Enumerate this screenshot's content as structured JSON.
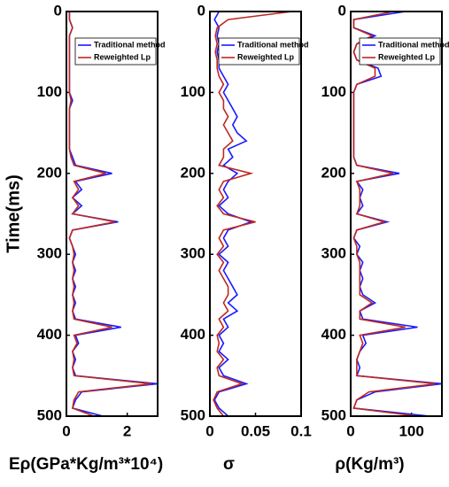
{
  "chart_data": [
    {
      "type": "line",
      "ylabel": "Time(ms)",
      "xlabel": "Eρ(GPa*Kg/m³*10⁴)",
      "y_reversed": true,
      "y": [
        0,
        10,
        20,
        30,
        40,
        50,
        60,
        70,
        80,
        90,
        100,
        110,
        120,
        130,
        140,
        150,
        160,
        170,
        180,
        190,
        200,
        210,
        220,
        230,
        240,
        250,
        260,
        270,
        280,
        290,
        300,
        310,
        320,
        330,
        340,
        350,
        360,
        370,
        380,
        390,
        400,
        410,
        420,
        430,
        440,
        450,
        460,
        470,
        480,
        490,
        500
      ],
      "ylim": [
        0,
        500
      ],
      "yticks": [
        0,
        100,
        200,
        300,
        400,
        500
      ],
      "xlim": [
        0,
        3
      ],
      "xticks": [
        0,
        2
      ],
      "series": [
        {
          "name": "Traditional method",
          "color": "#1a1aff",
          "values": [
            0.1,
            0.1,
            0.2,
            0.1,
            0.1,
            0.1,
            0.1,
            0.1,
            0.1,
            0.1,
            0.1,
            0.2,
            0.1,
            0.1,
            0.1,
            0.1,
            0.1,
            0.1,
            0.2,
            0.3,
            1.5,
            0.3,
            0.5,
            0.2,
            0.5,
            0.2,
            1.7,
            0.2,
            0.1,
            0.2,
            0.3,
            0.2,
            0.3,
            0.2,
            0.3,
            0.2,
            0.3,
            0.2,
            0.3,
            1.8,
            0.3,
            0.4,
            0.2,
            0.3,
            0.2,
            0.3,
            3.0,
            0.5,
            0.3,
            0.2,
            1.2
          ]
        },
        {
          "name": "Reweighted Lp",
          "color": "#c0281e",
          "values": [
            0.1,
            0.1,
            0.2,
            0.1,
            0.1,
            0.1,
            0.1,
            0.1,
            0.1,
            0.1,
            0.1,
            0.15,
            0.1,
            0.1,
            0.1,
            0.1,
            0.1,
            0.1,
            0.15,
            0.25,
            1.3,
            0.25,
            0.4,
            0.2,
            0.4,
            0.2,
            1.6,
            0.2,
            0.1,
            0.2,
            0.25,
            0.2,
            0.25,
            0.2,
            0.25,
            0.2,
            0.25,
            0.2,
            0.25,
            1.5,
            0.25,
            0.35,
            0.2,
            0.25,
            0.2,
            0.25,
            2.8,
            0.4,
            0.25,
            0.2,
            0.9
          ]
        }
      ]
    },
    {
      "type": "line",
      "xlabel": "σ",
      "y_reversed": true,
      "y": [
        0,
        10,
        20,
        30,
        40,
        50,
        60,
        70,
        80,
        90,
        100,
        110,
        120,
        130,
        140,
        150,
        160,
        170,
        180,
        190,
        200,
        210,
        220,
        230,
        240,
        250,
        260,
        270,
        280,
        290,
        300,
        310,
        320,
        330,
        340,
        350,
        360,
        370,
        380,
        390,
        400,
        410,
        420,
        430,
        440,
        450,
        460,
        470,
        480,
        490,
        500
      ],
      "ylim": [
        0,
        500
      ],
      "yticks": [
        0,
        100,
        200,
        300,
        400,
        500
      ],
      "xlim": [
        0,
        0.1
      ],
      "xticks": [
        0,
        0.05,
        0.1
      ],
      "series": [
        {
          "name": "Traditional method",
          "color": "#1a1aff",
          "values": [
            0.01,
            0.005,
            0.01,
            0.008,
            0.01,
            0.008,
            0.01,
            0.01,
            0.015,
            0.02,
            0.015,
            0.02,
            0.025,
            0.03,
            0.025,
            0.03,
            0.04,
            0.02,
            0.025,
            0.015,
            0.03,
            0.02,
            0.015,
            0.02,
            0.01,
            0.02,
            0.045,
            0.02,
            0.015,
            0.02,
            0.01,
            0.02,
            0.015,
            0.02,
            0.025,
            0.03,
            0.02,
            0.03,
            0.015,
            0.02,
            0.01,
            0.015,
            0.01,
            0.02,
            0.01,
            0.015,
            0.04,
            0.01,
            0.005,
            0.01,
            0.02
          ]
        },
        {
          "name": "Reweighted Lp",
          "color": "#c0281e",
          "values": [
            0.09,
            0.02,
            0.008,
            0.006,
            0.008,
            0.006,
            0.008,
            0.008,
            0.01,
            0.015,
            0.01,
            0.015,
            0.015,
            0.02,
            0.015,
            0.02,
            0.025,
            0.015,
            0.015,
            0.01,
            0.045,
            0.015,
            0.01,
            0.015,
            0.008,
            0.015,
            0.05,
            0.015,
            0.01,
            0.015,
            0.008,
            0.015,
            0.01,
            0.015,
            0.02,
            0.02,
            0.015,
            0.02,
            0.01,
            0.015,
            0.008,
            0.01,
            0.008,
            0.015,
            0.008,
            0.01,
            0.035,
            0.008,
            0.004,
            0.008,
            0.015
          ]
        }
      ]
    },
    {
      "type": "line",
      "xlabel": "ρ(Kg/m³)",
      "y_reversed": true,
      "y": [
        0,
        10,
        20,
        30,
        40,
        50,
        60,
        70,
        80,
        90,
        100,
        110,
        120,
        130,
        140,
        150,
        160,
        170,
        180,
        190,
        200,
        210,
        220,
        230,
        240,
        250,
        260,
        270,
        280,
        290,
        300,
        310,
        320,
        330,
        340,
        350,
        360,
        370,
        380,
        390,
        400,
        410,
        420,
        430,
        440,
        450,
        460,
        470,
        480,
        490,
        500
      ],
      "ylim": [
        0,
        500
      ],
      "yticks": [
        0,
        100,
        200,
        300,
        400,
        500
      ],
      "xlim": [
        0,
        150
      ],
      "xticks": [
        0,
        100
      ],
      "series": [
        {
          "name": "Traditional method",
          "color": "#1a1aff",
          "values": [
            90,
            5,
            5,
            40,
            10,
            5,
            10,
            45,
            50,
            10,
            5,
            5,
            5,
            5,
            5,
            5,
            5,
            5,
            5,
            10,
            80,
            10,
            20,
            15,
            20,
            10,
            60,
            10,
            5,
            15,
            10,
            20,
            15,
            20,
            15,
            20,
            40,
            15,
            20,
            110,
            20,
            25,
            15,
            10,
            15,
            10,
            150,
            40,
            10,
            5,
            130
          ]
        },
        {
          "name": "Reweighted Lp",
          "color": "#c0281e",
          "values": [
            70,
            5,
            5,
            35,
            10,
            5,
            10,
            40,
            40,
            10,
            5,
            5,
            5,
            5,
            5,
            5,
            5,
            5,
            5,
            10,
            70,
            10,
            15,
            15,
            15,
            10,
            55,
            10,
            5,
            10,
            10,
            15,
            15,
            15,
            15,
            15,
            35,
            15,
            15,
            90,
            15,
            20,
            15,
            10,
            10,
            10,
            140,
            30,
            10,
            5,
            110
          ]
        }
      ]
    }
  ]
}
